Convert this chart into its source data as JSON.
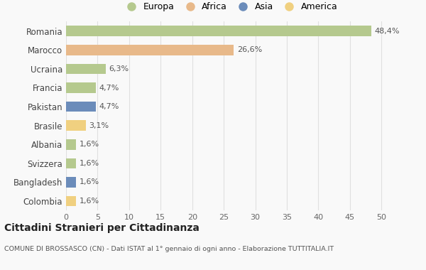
{
  "countries": [
    "Romania",
    "Marocco",
    "Ucraina",
    "Francia",
    "Pakistan",
    "Brasile",
    "Albania",
    "Svizzera",
    "Bangladesh",
    "Colombia"
  ],
  "values": [
    48.4,
    26.6,
    6.3,
    4.7,
    4.7,
    3.1,
    1.6,
    1.6,
    1.6,
    1.6
  ],
  "labels": [
    "48,4%",
    "26,6%",
    "6,3%",
    "4,7%",
    "4,7%",
    "3,1%",
    "1,6%",
    "1,6%",
    "1,6%",
    "1,6%"
  ],
  "colors": [
    "#b5c98e",
    "#e8b98a",
    "#b5c98e",
    "#b5c98e",
    "#6b8cba",
    "#f0d080",
    "#b5c98e",
    "#b5c98e",
    "#6b8cba",
    "#f0d080"
  ],
  "legend_labels": [
    "Europa",
    "Africa",
    "Asia",
    "America"
  ],
  "legend_colors": [
    "#b5c98e",
    "#e8b98a",
    "#6b8cba",
    "#f0d080"
  ],
  "title": "Cittadini Stranieri per Cittadinanza",
  "subtitle": "COMUNE DI BROSSASCO (CN) - Dati ISTAT al 1° gennaio di ogni anno - Elaborazione TUTTITALIA.IT",
  "xlim": [
    0,
    52
  ],
  "xticks": [
    0,
    5,
    10,
    15,
    20,
    25,
    30,
    35,
    40,
    45,
    50
  ],
  "background_color": "#f9f9f9",
  "grid_color": "#e0e0e0",
  "bar_height": 0.55
}
